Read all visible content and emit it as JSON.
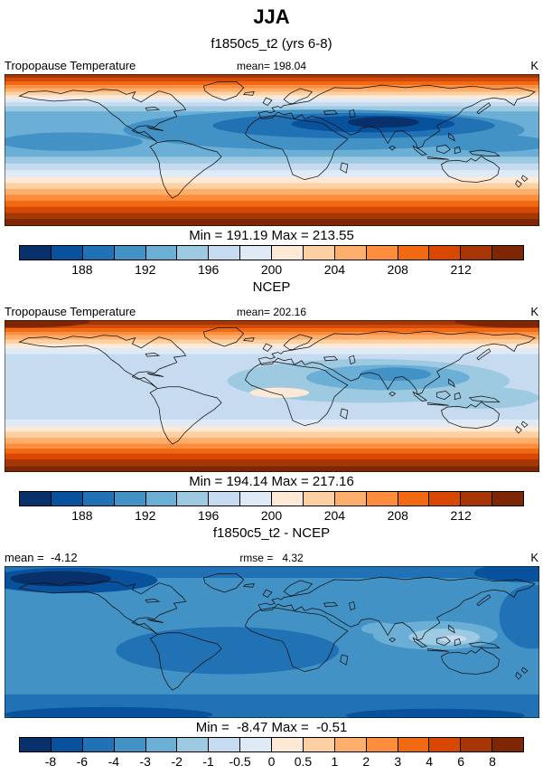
{
  "title": "JJA",
  "subtitle": "f1850c5_t2 (yrs 6-8)",
  "sections": {
    "ncep": "NCEP",
    "diff": "f1850c5_t2 - NCEP"
  },
  "palette": [
    "#08306b",
    "#08519c",
    "#2171b5",
    "#4292c6",
    "#6baed6",
    "#9ecae1",
    "#c6dbef",
    "#deebf7",
    "#fee8d6",
    "#fdd0a2",
    "#fdae6b",
    "#fd8d3c",
    "#f16913",
    "#d94801",
    "#a63603",
    "#7f2704"
  ],
  "panels": [
    {
      "variable": "Tropopause Temperature",
      "mean": "mean= 198.04",
      "unit": "K",
      "minmax": "Min = 191.19 Max = 213.55",
      "colorbar": {
        "ticks": [
          {
            "label": "188",
            "pos": 0.125
          },
          {
            "label": "192",
            "pos": 0.25
          },
          {
            "label": "196",
            "pos": 0.375
          },
          {
            "label": "200",
            "pos": 0.5
          },
          {
            "label": "204",
            "pos": 0.625
          },
          {
            "label": "208",
            "pos": 0.75
          },
          {
            "label": "212",
            "pos": 0.875
          }
        ]
      }
    },
    {
      "variable": "Tropopause Temperature",
      "mean": "mean= 202.16",
      "unit": "K",
      "minmax": "Min = 194.14 Max = 217.16",
      "colorbar": {
        "ticks": [
          {
            "label": "188",
            "pos": 0.125
          },
          {
            "label": "192",
            "pos": 0.25
          },
          {
            "label": "196",
            "pos": 0.375
          },
          {
            "label": "200",
            "pos": 0.5
          },
          {
            "label": "204",
            "pos": 0.625
          },
          {
            "label": "208",
            "pos": 0.75
          },
          {
            "label": "212",
            "pos": 0.875
          }
        ]
      }
    },
    {
      "left": "mean =  -4.12",
      "center": "rmse =   4.32",
      "unit": "K",
      "minmax": "Min =  -8.47 Max =  -0.51",
      "colorbar": {
        "ticks": [
          {
            "label": "-8",
            "pos": 0.0625
          },
          {
            "label": "-6",
            "pos": 0.125
          },
          {
            "label": "-4",
            "pos": 0.1875
          },
          {
            "label": "-3",
            "pos": 0.25
          },
          {
            "label": "-2",
            "pos": 0.3125
          },
          {
            "label": "-1",
            "pos": 0.375
          },
          {
            "label": "-0.5",
            "pos": 0.4375
          },
          {
            "label": "0",
            "pos": 0.5
          },
          {
            "label": "0.5",
            "pos": 0.5625
          },
          {
            "label": "1",
            "pos": 0.625
          },
          {
            "label": "2",
            "pos": 0.6875
          },
          {
            "label": "3",
            "pos": 0.75
          },
          {
            "label": "4",
            "pos": 0.8125
          },
          {
            "label": "6",
            "pos": 0.875
          },
          {
            "label": "8",
            "pos": 0.9375
          }
        ]
      }
    }
  ],
  "chart_data": [
    {
      "type": "heatmap",
      "subtype": "filled-contour global map, equirectangular",
      "title": "f1850c5_t2 (yrs 6-8)",
      "season": "JJA",
      "variable": "Tropopause Temperature",
      "units": "K",
      "stats": {
        "mean": 198.04,
        "min": 191.19,
        "max": 213.55
      },
      "contour_boundaries": [
        186,
        188,
        190,
        192,
        194,
        196,
        198,
        200,
        202,
        204,
        206,
        208,
        210,
        212,
        214
      ],
      "labeled_ticks": [
        188,
        192,
        196,
        200,
        204,
        208,
        212
      ],
      "extent": {
        "lon": [
          -180,
          180
        ],
        "lat": [
          -90,
          90
        ]
      },
      "pattern": "warm (204-214 K) bands at high latitudes of both hemispheres, cold (192-198 K) across the tropics and northern midlatitudes, coldest core (<192 K) centered over South Asia / Tibetan Plateau"
    },
    {
      "type": "heatmap",
      "subtype": "filled-contour global map, equirectangular",
      "title": "NCEP",
      "season": "JJA",
      "variable": "Tropopause Temperature",
      "units": "K",
      "stats": {
        "mean": 202.16,
        "min": 194.14,
        "max": 217.16
      },
      "contour_boundaries": [
        186,
        188,
        190,
        192,
        194,
        196,
        198,
        200,
        202,
        204,
        206,
        208,
        210,
        212,
        214
      ],
      "labeled_ticks": [
        188,
        192,
        196,
        200,
        204,
        208,
        212
      ],
      "extent": {
        "lon": [
          -180,
          180
        ],
        "lat": [
          -90,
          90
        ]
      },
      "pattern": "same structure as model but warmer: tropics mostly 198-202 K (pale blue), coldest region (194-198 K) over South/Southeast Asia, dark red (>212 K) at polar edges"
    },
    {
      "type": "heatmap",
      "subtype": "filled-contour global difference map, equirectangular",
      "title": "f1850c5_t2 - NCEP",
      "variable": "Tropopause Temperature difference",
      "units": "K",
      "stats": {
        "mean": -4.12,
        "rmse": 4.32,
        "min": -8.47,
        "max": -0.51
      },
      "contour_boundaries": [
        -8,
        -6,
        -4,
        -3,
        -2,
        -1,
        -0.5,
        0,
        0.5,
        1,
        2,
        3,
        4,
        6,
        8
      ],
      "labeled_ticks": [
        -8,
        -6,
        -4,
        -3,
        -2,
        -1,
        -0.5,
        0,
        0.5,
        1,
        2,
        3,
        4,
        6,
        8
      ],
      "extent": {
        "lon": [
          -180,
          180
        ],
        "lat": [
          -90,
          90
        ]
      },
      "pattern": "negative everywhere (model colder than NCEP, -2 to -8 K); strongest negative (< -6 K) over the North Pacific near Alaska; weakest negative (-0.5 to -2 K) over the Maritime Continent / Indonesia"
    }
  ]
}
